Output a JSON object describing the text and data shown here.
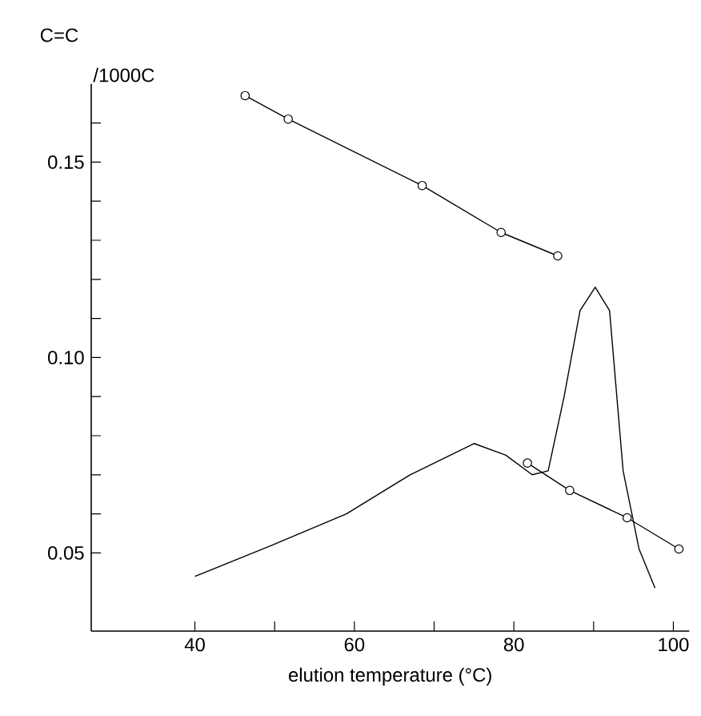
{
  "chart_data": {
    "type": "line",
    "xlabel": "elution temperature (°C)",
    "ylabel": "C=C",
    "annotations": [
      "/1000C"
    ],
    "series": [
      {
        "color": "#000000",
        "marker": "circle",
        "x": [
          46.3,
          51.7,
          68.5,
          78.4,
          85.5,
          null,
          81.7,
          87.0,
          94.2,
          100.7
        ],
        "values": [
          0.167,
          0.161,
          0.144,
          0.132,
          0.126,
          null,
          0.073,
          0.066,
          0.059,
          0.051
        ]
      },
      {
        "color": "#000000",
        "marker": "none",
        "x": [
          40,
          49.7,
          59.0,
          67.0,
          75.0,
          79.0,
          82.3,
          84.3,
          86.3,
          88.3,
          90.2,
          92.0,
          93.7,
          95.7,
          97.7
        ],
        "values": [
          0.044,
          0.052,
          0.06,
          0.07,
          0.078,
          0.075,
          0.07,
          0.071,
          0.09,
          0.112,
          0.118,
          0.112,
          0.071,
          0.051,
          0.041
        ]
      }
    ],
    "xlim": [
      27,
      102
    ],
    "ylim": [
      0.03,
      0.17
    ],
    "xticks": [
      40,
      {
        "value": 50,
        "label": null
      },
      60,
      {
        "value": 70,
        "label": null
      },
      80,
      {
        "value": 90,
        "label": null
      },
      100
    ],
    "yticks": [
      {
        "value": 0.05,
        "label": "0.05"
      },
      {
        "value": 0.06,
        "label": null
      },
      {
        "value": 0.07,
        "label": null
      },
      {
        "value": 0.08,
        "label": null
      },
      {
        "value": 0.09,
        "label": null
      },
      {
        "value": 0.1,
        "label": "0.10"
      },
      {
        "value": 0.11,
        "label": null
      },
      {
        "value": 0.12,
        "label": null
      },
      {
        "value": 0.13,
        "label": null
      },
      {
        "value": 0.14,
        "label": null
      },
      {
        "value": 0.15,
        "label": "0.15"
      },
      {
        "value": 0.16,
        "label": null
      }
    ],
    "line_style": "solid"
  }
}
